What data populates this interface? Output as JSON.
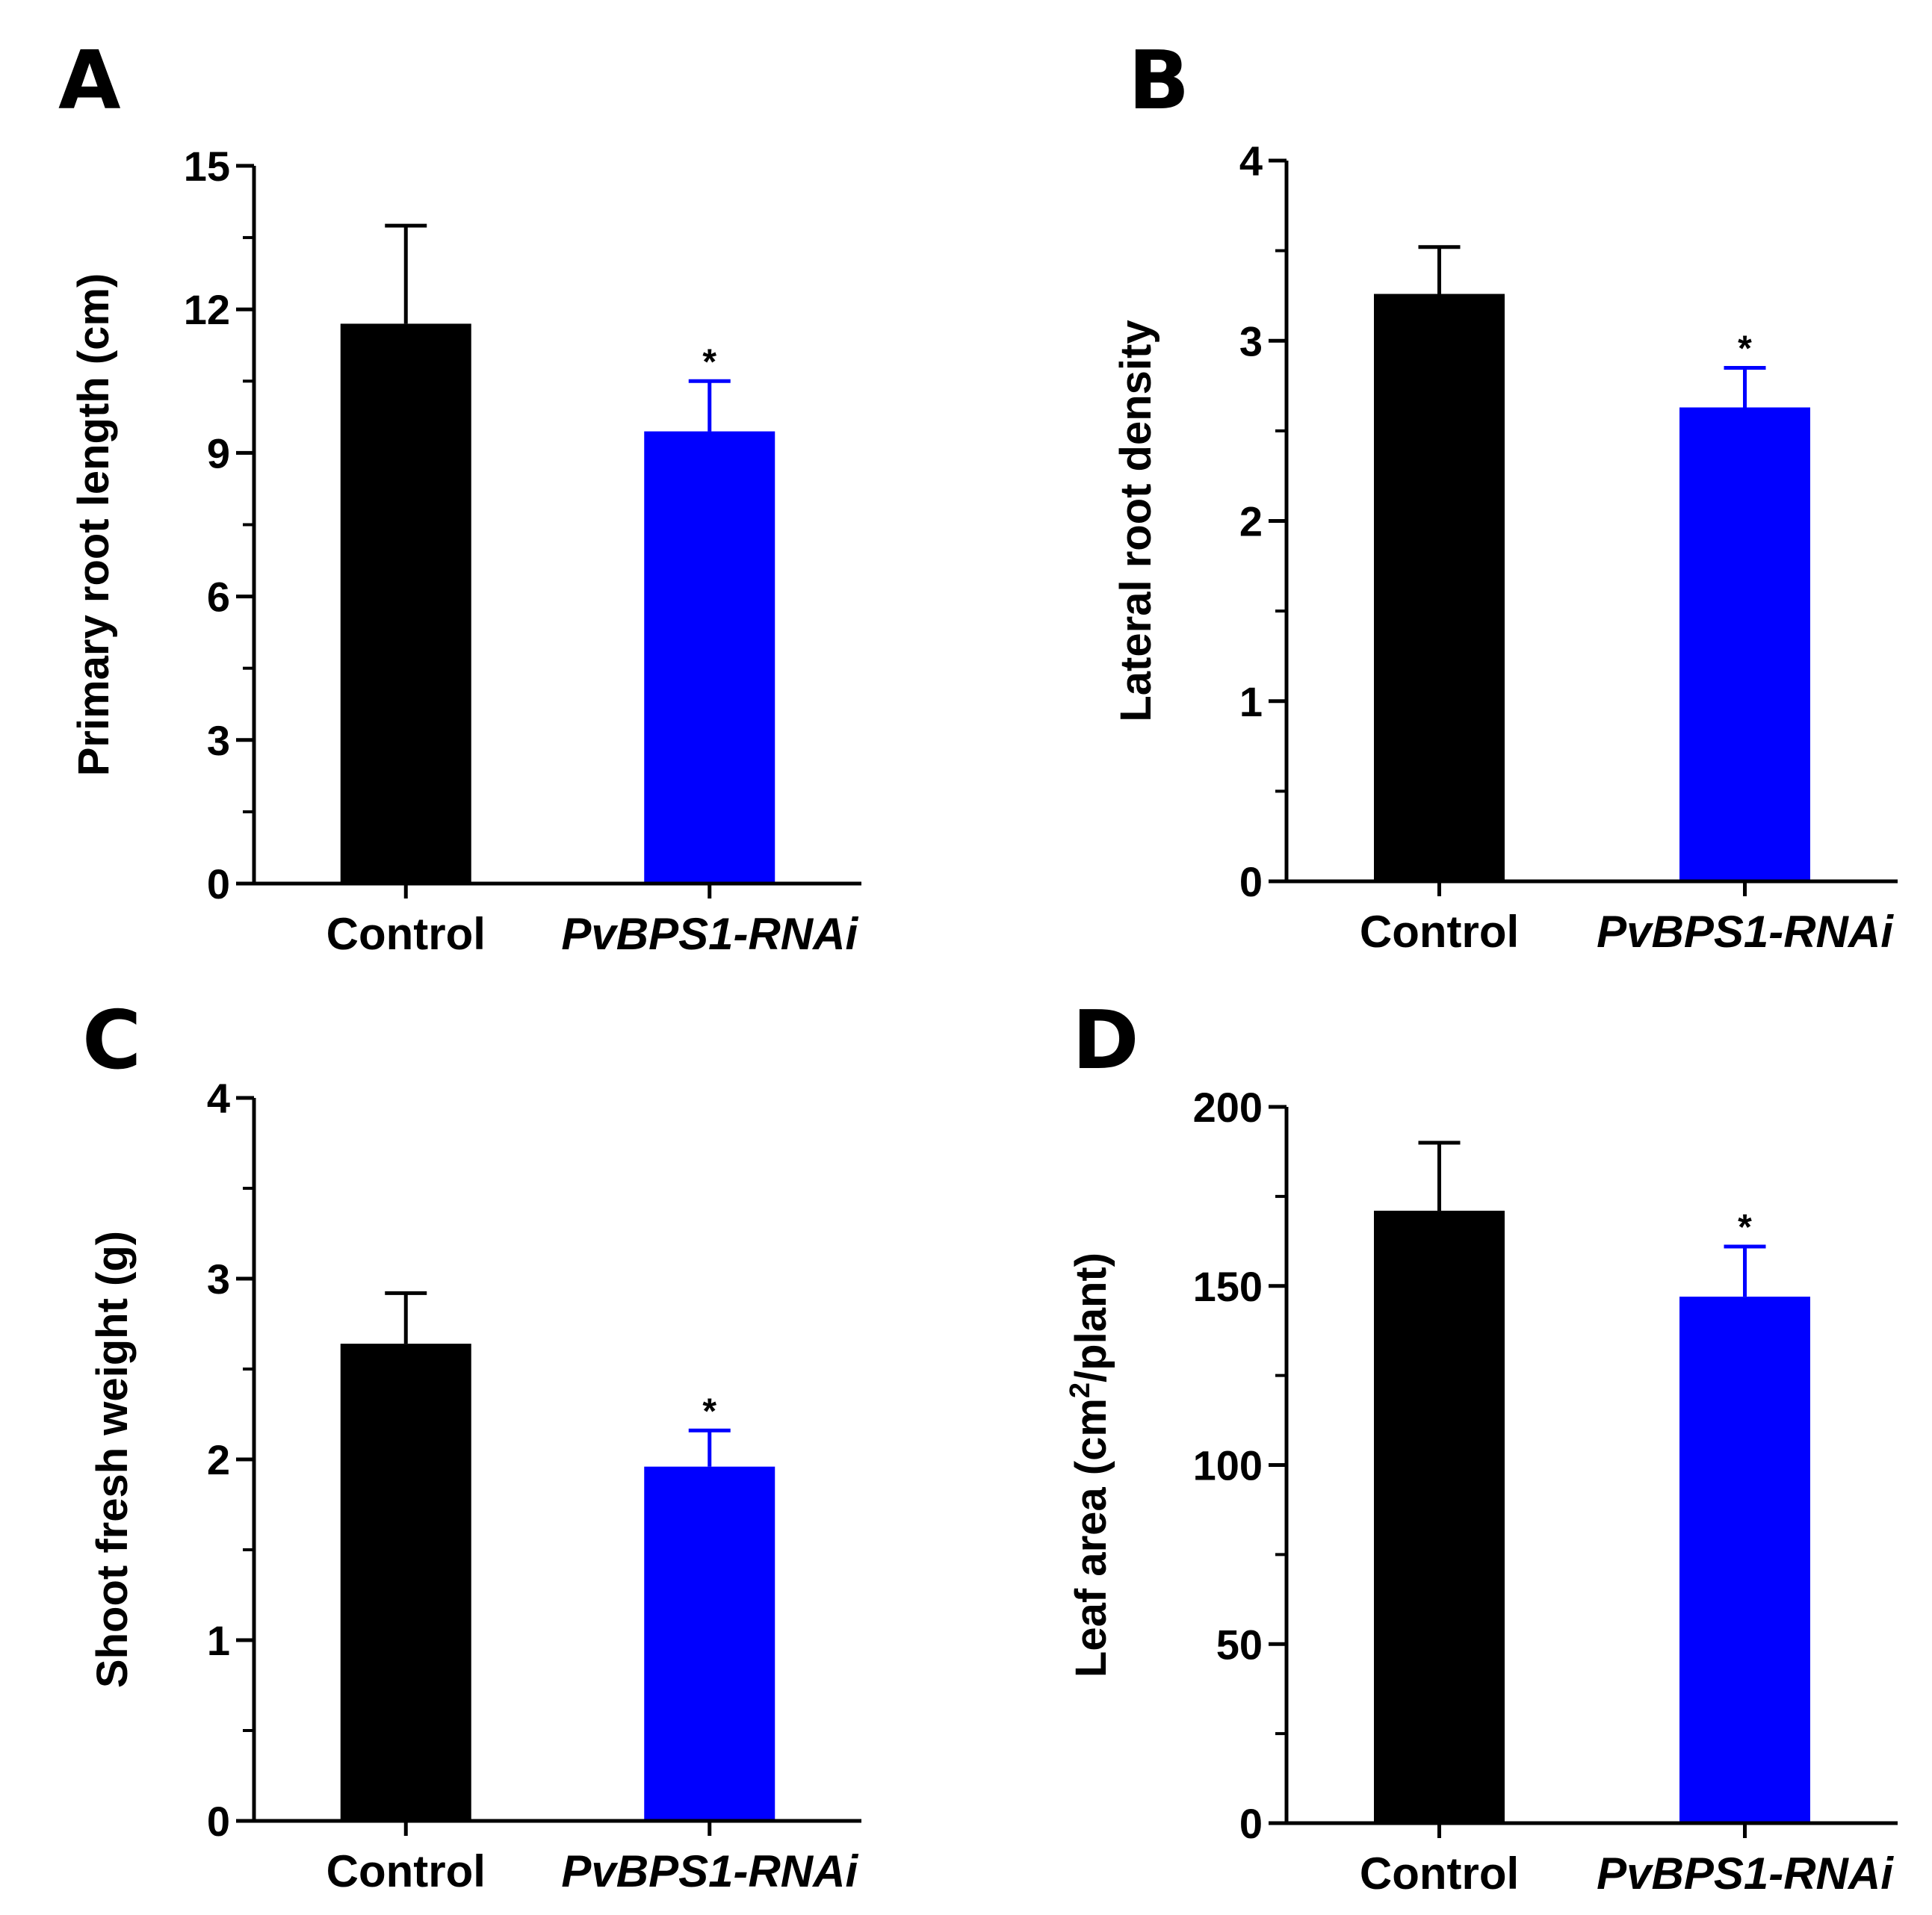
{
  "colors": {
    "control": "#000000",
    "rnai": "#0000FF",
    "axis": "#000000"
  },
  "chart_data": [
    {
      "panel": "A",
      "type": "bar",
      "categories": [
        "Control",
        "PvBPS1-RNAi"
      ],
      "category_italic": [
        false,
        true
      ],
      "values": [
        11.7,
        9.45
      ],
      "errors": [
        2.05,
        1.05
      ],
      "significance": [
        "",
        "*"
      ],
      "ylabel": "Primary root length (cm)",
      "ylabel_superscript": "",
      "ylabel_suffix": "",
      "ylim": [
        0,
        15
      ],
      "yticks": [
        0,
        3,
        6,
        9,
        12,
        15
      ],
      "minor_per_major": 2
    },
    {
      "panel": "B",
      "type": "bar",
      "categories": [
        "Control",
        "PvBPS1-RNAi"
      ],
      "category_italic": [
        false,
        true
      ],
      "values": [
        3.26,
        2.63
      ],
      "errors": [
        0.26,
        0.22
      ],
      "significance": [
        "",
        "*"
      ],
      "ylabel": "Lateral root density",
      "ylabel_superscript": "",
      "ylabel_suffix": "",
      "ylim": [
        0,
        4
      ],
      "yticks": [
        0,
        1,
        2,
        3,
        4
      ],
      "minor_per_major": 2
    },
    {
      "panel": "C",
      "type": "bar",
      "categories": [
        "Control",
        "PvBPS1-RNAi"
      ],
      "category_italic": [
        false,
        true
      ],
      "values": [
        2.64,
        1.96
      ],
      "errors": [
        0.28,
        0.2
      ],
      "significance": [
        "",
        "*"
      ],
      "ylabel": "Shoot fresh weight (g)",
      "ylabel_superscript": "",
      "ylabel_suffix": "",
      "ylim": [
        0,
        4
      ],
      "yticks": [
        0,
        1,
        2,
        3,
        4
      ],
      "minor_per_major": 2
    },
    {
      "panel": "D",
      "type": "bar",
      "categories": [
        "Control",
        "PvBPS1-RNAi"
      ],
      "category_italic": [
        false,
        true
      ],
      "values": [
        171,
        147
      ],
      "errors": [
        19,
        14
      ],
      "significance": [
        "",
        "*"
      ],
      "ylabel": "Leaf area (cm",
      "ylabel_superscript": "2",
      "ylabel_suffix": "/plant)",
      "ylim": [
        0,
        200
      ],
      "yticks": [
        0,
        50,
        100,
        150,
        200
      ],
      "minor_per_major": 2
    }
  ]
}
